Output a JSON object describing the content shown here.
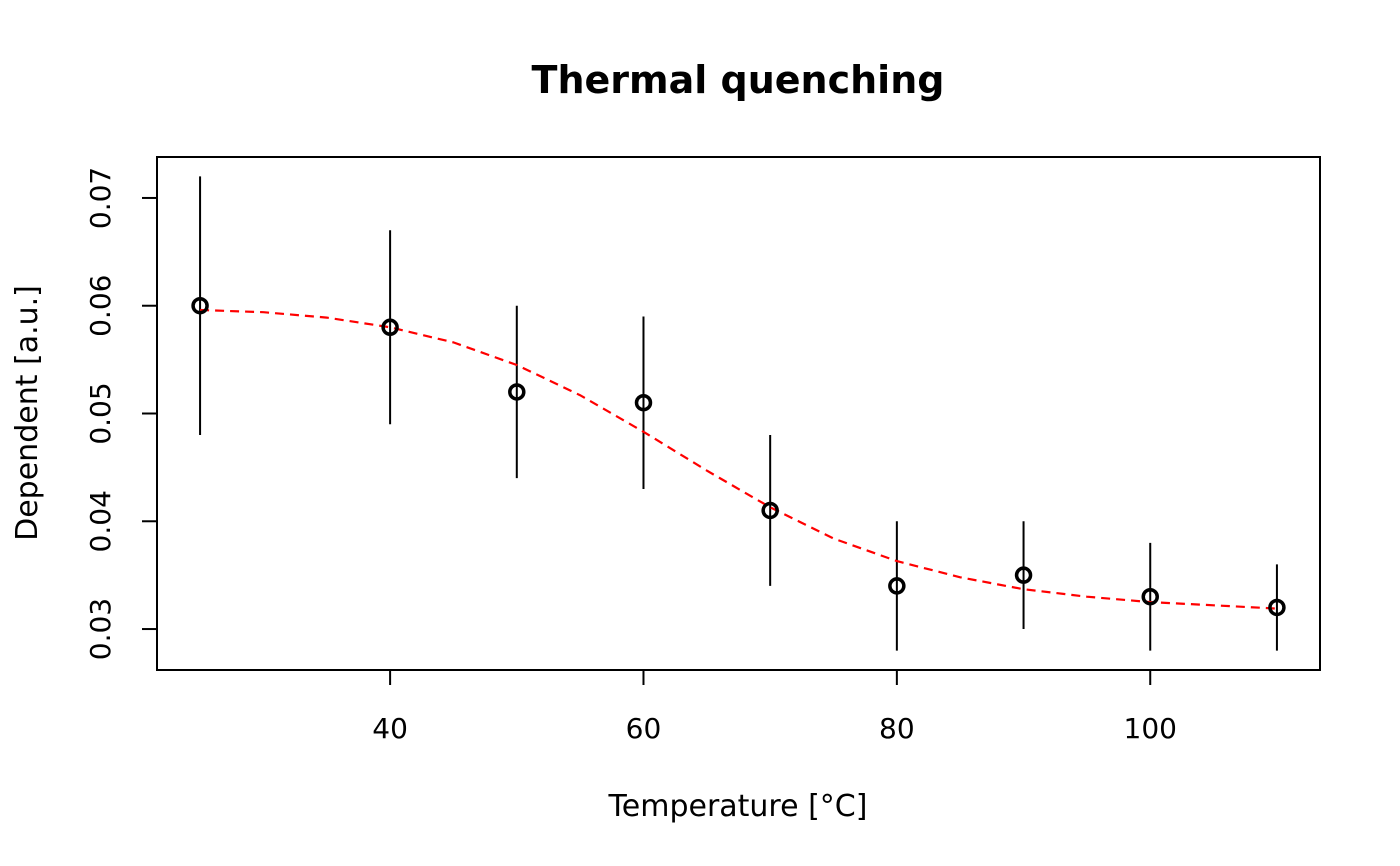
{
  "chart_data": {
    "type": "scatter",
    "title": "Thermal quenching",
    "xlabel": "Temperature [°C]",
    "ylabel": "Dependent [a.u.]",
    "xlim": [
      21.6,
      113.4
    ],
    "ylim": [
      0.0262,
      0.0738
    ],
    "x_ticks": [
      40,
      60,
      80,
      100
    ],
    "y_ticks": [
      0.03,
      0.04,
      0.05,
      0.06,
      0.07
    ],
    "x_tick_labels": [
      "40",
      "60",
      "80",
      "100"
    ],
    "y_tick_labels": [
      "0.03",
      "0.04",
      "0.05",
      "0.06",
      "0.07"
    ],
    "grid": false,
    "points": {
      "x": [
        25,
        40,
        50,
        60,
        70,
        80,
        90,
        100,
        110
      ],
      "y": [
        0.06,
        0.058,
        0.052,
        0.051,
        0.041,
        0.034,
        0.035,
        0.033,
        0.032
      ],
      "err_low": [
        0.048,
        0.049,
        0.044,
        0.043,
        0.034,
        0.028,
        0.03,
        0.028,
        0.028
      ],
      "err_high": [
        0.072,
        0.067,
        0.06,
        0.059,
        0.048,
        0.04,
        0.04,
        0.038,
        0.036
      ],
      "marker": "open-circle",
      "color": "#000000"
    },
    "fit_curve": {
      "x": [
        25,
        30,
        35,
        40,
        45,
        50,
        55,
        60,
        65,
        70,
        75,
        80,
        85,
        90,
        95,
        100,
        105,
        110
      ],
      "y": [
        0.0596,
        0.0594,
        0.0589,
        0.058,
        0.0566,
        0.0545,
        0.0517,
        0.0483,
        0.0447,
        0.0413,
        0.0384,
        0.0363,
        0.0348,
        0.0337,
        0.033,
        0.0325,
        0.0322,
        0.0319
      ],
      "style": "dashed",
      "color": "#ff0000"
    }
  }
}
